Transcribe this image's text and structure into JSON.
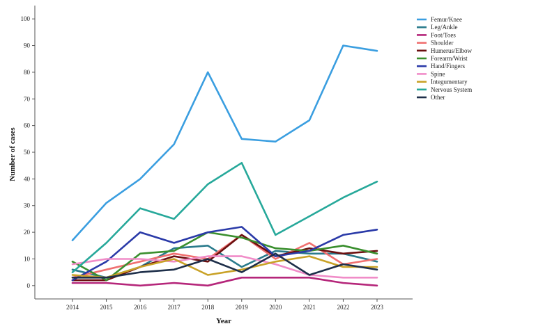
{
  "chart_data": {
    "type": "line",
    "title": "",
    "xlabel": "Year",
    "ylabel": "Number of cases",
    "ylim": [
      -5,
      105
    ],
    "yticks": [
      0,
      10,
      20,
      30,
      40,
      50,
      60,
      70,
      80,
      90,
      100
    ],
    "x": [
      "2014",
      "2015",
      "2016",
      "2017",
      "2018",
      "2019",
      "2020",
      "2021",
      "2022",
      "2023"
    ],
    "legend_position": "top-right",
    "grid": false,
    "series": [
      {
        "name": "Femur/Knee",
        "color": "#3a9ee0",
        "values": [
          17,
          31,
          40,
          53,
          80,
          55,
          54,
          62,
          90,
          88
        ]
      },
      {
        "name": "Leg/Ankle",
        "color": "#2a7b8c",
        "values": [
          6,
          3,
          7,
          14,
          15,
          7,
          13,
          12,
          12,
          9
        ]
      },
      {
        "name": "Foot/Toes",
        "color": "#b5267a",
        "values": [
          1,
          1,
          0,
          1,
          0,
          3,
          3,
          3,
          1,
          0
        ]
      },
      {
        "name": "Shoulder",
        "color": "#f07070",
        "values": [
          3,
          6,
          9,
          12,
          10,
          19,
          10,
          16,
          8,
          10
        ]
      },
      {
        "name": "Humerus/Elbow",
        "color": "#6b0f0f",
        "values": [
          2,
          2,
          7,
          11,
          9,
          19,
          11,
          14,
          12,
          13
        ]
      },
      {
        "name": "Forearm/Wrist",
        "color": "#3a8f2e",
        "values": [
          9,
          2,
          12,
          13,
          20,
          18,
          14,
          13,
          15,
          12
        ]
      },
      {
        "name": "Hand/Fingers",
        "color": "#2a3aa8",
        "values": [
          2,
          9,
          20,
          16,
          20,
          22,
          11,
          13,
          19,
          21
        ]
      },
      {
        "name": "Spine",
        "color": "#f08cc8",
        "values": [
          8,
          10,
          10,
          9,
          11,
          11,
          8,
          4,
          3,
          3
        ]
      },
      {
        "name": "Integumentary",
        "color": "#c9a227",
        "values": [
          4,
          3,
          7,
          10,
          4,
          6,
          9,
          11,
          7,
          7
        ]
      },
      {
        "name": "Nervous System",
        "color": "#26a89a",
        "values": [
          5,
          16,
          29,
          25,
          38,
          46,
          19,
          26,
          33,
          39
        ]
      },
      {
        "name": "Other",
        "color": "#1e2f4a",
        "values": [
          3,
          3,
          5,
          6,
          10,
          5,
          12,
          4,
          8,
          6
        ]
      }
    ]
  }
}
